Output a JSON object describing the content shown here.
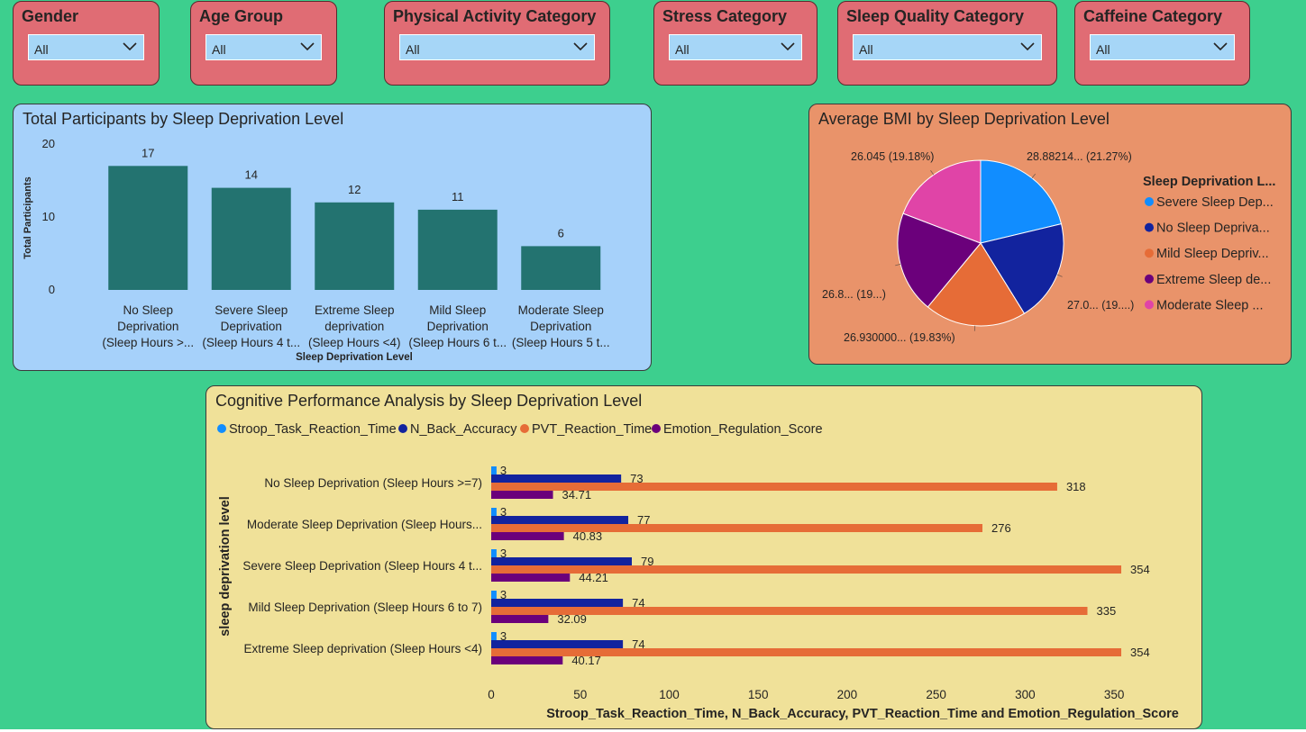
{
  "slicers": [
    {
      "title": "Gender",
      "value": "All"
    },
    {
      "title": "Age Group",
      "value": "All"
    },
    {
      "title": "Physical Activity Category",
      "value": "All"
    },
    {
      "title": "Stress Category",
      "value": "All"
    },
    {
      "title": "Sleep Quality Category",
      "value": "All"
    },
    {
      "title": "Caffeine Category",
      "value": "All"
    }
  ],
  "colors": {
    "page_bg": "#3dcf8e",
    "slicer_bg": "#e06c74",
    "dropdown_bg": "#a6d6f7",
    "bar_card_bg": "#a6d1fa",
    "pie_card_bg": "#e9936a",
    "hbar_card_bg": "#f0e199",
    "bar_fill": "#237370",
    "stroop": "#118dff",
    "nback": "#12239e",
    "pvt": "#e66c37",
    "emotion": "#6b007b",
    "pie_pink": "#e044a7"
  },
  "chart_data": [
    {
      "type": "bar",
      "title": "Total Participants by Sleep Deprivation Level",
      "xlabel": "Sleep Deprivation Level",
      "ylabel": "Total Participants",
      "categories": [
        [
          "No Sleep",
          "Deprivation",
          "(Sleep Hours >..."
        ],
        [
          "Severe Sleep",
          "Deprivation",
          "(Sleep Hours 4 t..."
        ],
        [
          "Extreme Sleep",
          "deprivation",
          "(Sleep Hours <4)"
        ],
        [
          "Mild Sleep",
          "Deprivation",
          "(Sleep Hours 6 t..."
        ],
        [
          "Moderate Sleep",
          "Deprivation",
          "(Sleep Hours 5 t..."
        ]
      ],
      "values": [
        17,
        14,
        12,
        11,
        6
      ],
      "yticks": [
        0,
        10,
        20
      ],
      "ylim": [
        0,
        20
      ],
      "grid": false
    },
    {
      "type": "pie",
      "title": "Average BMI by Sleep Deprivation Level",
      "legend_title": "Sleep Deprivation L...",
      "legend_position": "right",
      "slices": [
        {
          "legend": "Severe Sleep Dep...",
          "label": "28.88214... (21.27%)",
          "pct": 21.27,
          "color": "#118dff"
        },
        {
          "legend": "No Sleep Deprivа...",
          "label": "27.0... (19....)",
          "pct": 19.9,
          "color": "#12239e"
        },
        {
          "legend": "Mild Sleep Depriv...",
          "label": "26.930000... (19.83%)",
          "pct": 19.83,
          "color": "#e66c37"
        },
        {
          "legend": "Extreme Sleep de...",
          "label": "26.8... (19...)",
          "pct": 19.82,
          "color": "#6b007b"
        },
        {
          "legend": "Moderate Sleep ...",
          "label": "26.045 (19.18%)",
          "pct": 19.18,
          "color": "#e044a7"
        }
      ]
    },
    {
      "type": "bar",
      "orientation": "horizontal",
      "title": "Cognitive Performance Analysis by Sleep Deprivation Level",
      "xlabel": "Stroop_Task_Reaction_Time, N_Back_Accuracy, PVT_Reaction_Time and Emotion_Regulation_Score",
      "ylabel": "sleep deprivation level",
      "categories": [
        "No Sleep Deprivation (Sleep Hours >=7)",
        "Moderate Sleep Deprivation (Sleep Hours...",
        "Severe Sleep Deprivation (Sleep Hours 4 t...",
        "Mild Sleep Deprivation (Sleep Hours 6 to 7)",
        "Extreme Sleep deprivation (Sleep Hours <4)"
      ],
      "series": [
        {
          "name": "Stroop_Task_Reaction_Time",
          "color": "#118dff",
          "values": [
            3,
            3,
            3,
            3,
            3
          ],
          "labels": [
            "3",
            "3",
            "3",
            "3",
            "3"
          ]
        },
        {
          "name": "N_Back_Accuracy",
          "color": "#12239e",
          "values": [
            73,
            77,
            79,
            74,
            74
          ],
          "labels": [
            "73",
            "77",
            "79",
            "74",
            "74"
          ]
        },
        {
          "name": "PVT_Reaction_Time",
          "color": "#e66c37",
          "values": [
            318,
            276,
            354,
            335,
            354
          ],
          "labels": [
            "318",
            "276",
            "354",
            "335",
            "354"
          ]
        },
        {
          "name": "Emotion_Regulation_Score",
          "color": "#6b007b",
          "values": [
            34.71,
            40.83,
            44.21,
            32.09,
            40.17
          ],
          "labels": [
            "34.71",
            "40.83",
            "44.21",
            "32.09",
            "40.17"
          ]
        }
      ],
      "xticks": [
        0,
        50,
        100,
        150,
        200,
        250,
        300,
        350
      ],
      "xlim": [
        0,
        355
      ],
      "legend_position": "top-left",
      "grid": false
    }
  ]
}
